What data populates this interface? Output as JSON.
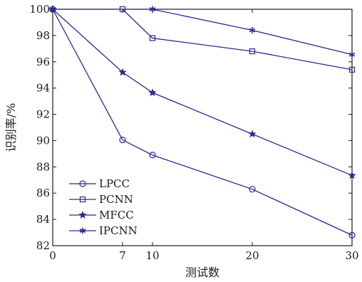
{
  "chart_data": {
    "type": "line",
    "xlabel": "测试数",
    "ylabel": "识别率/%",
    "xlim": [
      0,
      30
    ],
    "ylim": [
      82,
      100
    ],
    "x_ticks": [
      0,
      7,
      10,
      20,
      30
    ],
    "y_ticks": [
      82,
      84,
      86,
      88,
      90,
      92,
      94,
      96,
      98,
      100
    ],
    "grid": false,
    "legend_position": "bottom-left",
    "line_color": "#2b2a8f",
    "series": [
      {
        "name": "LPCC",
        "marker": "circle",
        "x": [
          0,
          7,
          10,
          20,
          30
        ],
        "values": [
          100,
          90.05,
          88.9,
          86.3,
          82.8
        ]
      },
      {
        "name": "PCNN",
        "marker": "square",
        "x": [
          7,
          10,
          20,
          30
        ],
        "values": [
          100,
          97.8,
          96.8,
          95.4
        ]
      },
      {
        "name": "MFCC",
        "marker": "star5",
        "x": [
          0,
          7,
          10,
          20,
          30
        ],
        "values": [
          100,
          95.2,
          93.65,
          90.5,
          87.35
        ]
      },
      {
        "name": "IPCNN",
        "marker": "asterisk",
        "x": [
          0,
          10,
          20,
          30
        ],
        "values": [
          100,
          100,
          98.4,
          96.55
        ]
      }
    ]
  }
}
